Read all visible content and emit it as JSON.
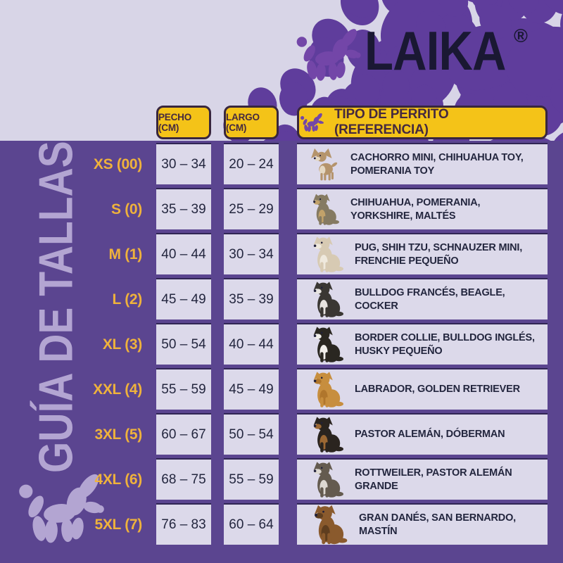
{
  "brand": {
    "name": "LAIKA",
    "registered": "®"
  },
  "sidebar_title": "GUÍA DE TALLAS",
  "table": {
    "headers": {
      "chest": "PECHO (CM)",
      "length": "LARGO (CM)",
      "breed": "TIPO DE PERRITO (REFERENCIA)"
    },
    "rows": [
      {
        "size": "XS (00)",
        "chest": "30 – 34",
        "length": "20 – 24",
        "breeds": "CACHORRO MINI, CHIHUAHUA TOY, POMERANIA TOY",
        "dog": "chihuahua-toy"
      },
      {
        "size": "S (0)",
        "chest": "35 – 39",
        "length": "25 – 29",
        "breeds": "CHIHUAHUA, POMERANIA, YORKSHIRE, MALTÉS",
        "dog": "yorkshire"
      },
      {
        "size": "M (1)",
        "chest": "40 – 44",
        "length": "30 – 34",
        "breeds": "PUG, SHIH TZU, SCHNAUZER MINI, FRENCHIE PEQUEÑO",
        "dog": "shih-tzu"
      },
      {
        "size": "L (2)",
        "chest": "45 – 49",
        "length": "35 – 39",
        "breeds": "BULLDOG FRANCÉS, BEAGLE, COCKER",
        "dog": "french-bulldog"
      },
      {
        "size": "XL (3)",
        "chest": "50 – 54",
        "length": "40 – 44",
        "breeds": "BORDER COLLIE, BULLDOG INGLÉS, HUSKY PEQUEÑO",
        "dog": "border-collie"
      },
      {
        "size": "XXL (4)",
        "chest": "55 – 59",
        "length": "45 – 49",
        "breeds": "LABRADOR, GOLDEN RETRIEVER",
        "dog": "golden-retriever"
      },
      {
        "size": "3XL (5)",
        "chest": "60 – 67",
        "length": "50 – 54",
        "breeds": "PASTOR ALEMÁN, DÓBERMAN",
        "dog": "doberman"
      },
      {
        "size": "4XL (6)",
        "chest": "68 – 75",
        "length": "55 – 59",
        "breeds": "ROTTWEILER, PASTOR ALEMÁN GRANDE",
        "dog": "rottweiler"
      },
      {
        "size": "5XL (7)",
        "chest": "76 – 83",
        "length": "60 – 64",
        "breeds": "GRAN DANÉS, SAN BERNARDO, MASTÍN",
        "dog": "mastiff"
      }
    ]
  },
  "icons": {
    "balloon_dog": "balloon-dog-icon",
    "paw": "paw-icon"
  },
  "colors": {
    "background": "#d8d5e7",
    "panel": "#5b4590",
    "header_fill": "#f4c318",
    "header_text": "#45293f",
    "size_label": "#efb23c",
    "cell_fill": "#dcd9ea",
    "cell_text": "#23263e",
    "brand_navy": "#1a1833",
    "logo_purple": "#7346a8",
    "paw_purple": "#5f3d9c",
    "title_lavender": "#b3a5d2"
  }
}
